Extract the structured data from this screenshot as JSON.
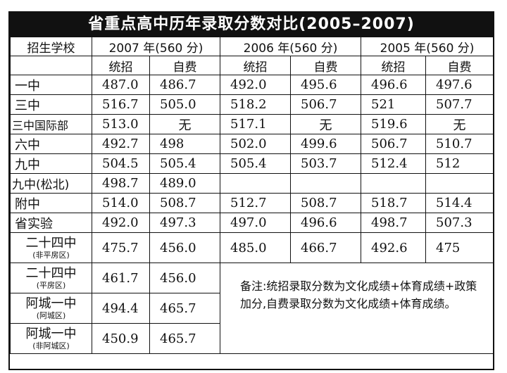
{
  "title": "省重点高中历年录取分数对比(2005–2007)",
  "header": {
    "school_col": "招生学校",
    "years": [
      "2007 年(560 分)",
      "2006 年(560 分)",
      "2005 年(560 分)"
    ],
    "sub": [
      "统招",
      "自费"
    ]
  },
  "rows": [
    {
      "school": "一中",
      "sub": "",
      "values": [
        "487.0",
        "486.7",
        "492.0",
        "495.6",
        "496.6",
        "497.6"
      ]
    },
    {
      "school": "三中",
      "sub": "",
      "values": [
        "516.7",
        "505.0",
        "518.2",
        "506.7",
        "521",
        "507.7"
      ]
    },
    {
      "school": "三中国际部",
      "sub": "",
      "values": [
        "513.0",
        "无",
        "517.1",
        "无",
        "519.6",
        "无"
      ]
    },
    {
      "school": "六中",
      "sub": "",
      "values": [
        "492.7",
        "498",
        "502.0",
        "499.6",
        "506.7",
        "510.7"
      ]
    },
    {
      "school": "九中",
      "sub": "",
      "values": [
        "504.5",
        "505.4",
        "505.4",
        "503.7",
        "512.4",
        "512"
      ]
    },
    {
      "school": "九中(松北)",
      "sub": "",
      "values": [
        "498.7",
        "489.0",
        "",
        "",
        "",
        ""
      ]
    },
    {
      "school": "附中",
      "sub": "",
      "values": [
        "514.0",
        "508.7",
        "512.7",
        "508.7",
        "518.7",
        "514.4"
      ]
    },
    {
      "school": "省实验",
      "sub": "",
      "values": [
        "492.0",
        "497.3",
        "497.0",
        "496.6",
        "498.7",
        "507.3"
      ]
    },
    {
      "school": "二十四中",
      "sub": "(非平房区)",
      "values": [
        "475.7",
        "456.0",
        "485.0",
        "466.7",
        "492.6",
        "475"
      ]
    },
    {
      "school": "二十四中",
      "sub": "(平房区)",
      "values": [
        "461.7",
        "456.0"
      ]
    },
    {
      "school": "阿城一中",
      "sub": "(阿城区)",
      "values": [
        "494.4",
        "465.7"
      ]
    },
    {
      "school": "阿城一中",
      "sub": "(非阿城区)",
      "values": [
        "450.9",
        "465.7"
      ]
    }
  ],
  "note": "备注:统招录取分数为文化成绩+体育成绩+政策加分,自费录取分数为文化成绩+体育成绩。"
}
